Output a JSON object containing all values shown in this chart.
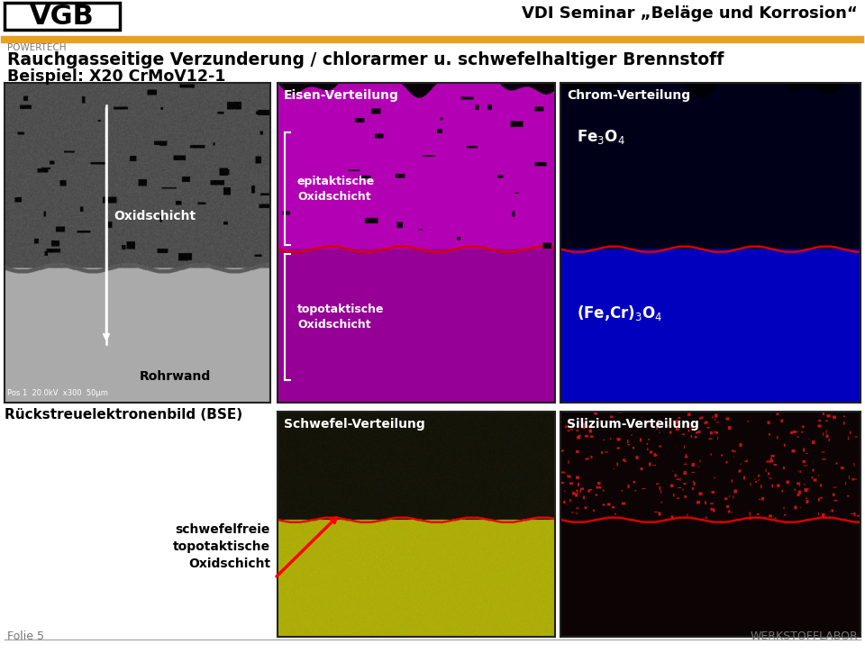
{
  "bg_color": "#ffffff",
  "header_line_color": "#E8A020",
  "title_text": "VDI Seminar „Beläge und Korrosion“",
  "logo_text": "VGB",
  "powertech_text": "POWERTECH",
  "main_title_line1": "Rauchgasseitige Verzunderung / chlorarmer u. schwefelhaltiger Brennstoff",
  "main_title_line2": "Beispiel: X20 CrMoV12-1",
  "footer_left": "Folie 5",
  "footer_right": "WERKSTOFFLABOR",
  "footer_line_color": "#aaaaaa",
  "text_color": "#000000",
  "gray_text": "#777777",
  "panel_bse_label": "Oxidschicht",
  "panel_bse_sublabel": "Rohrwand",
  "panel_bse_footer": "Rückstreuelektronenbild (BSE)",
  "panel_bse_microscale": "Pos 1  20.0kV  x300  50μm",
  "panel_eisen_title": "Eisen-Verteilung",
  "panel_eisen_label1": "epitaktische\nOxidschicht",
  "panel_eisen_label2": "topotaktische\nOxidschicht",
  "panel_chrom_title": "Chrom-Verteilung",
  "panel_chrom_label1": "Fe$_3$O$_4$",
  "panel_chrom_label2": "(Fe,Cr)$_3$O$_4$",
  "panel_schwefel_title": "Schwefel-Verteilung",
  "panel_schwefel_label": "schwefelfreie\ntopotaktische\nOxidschicht",
  "panel_silizium_title": "Silizium-Verteilung"
}
